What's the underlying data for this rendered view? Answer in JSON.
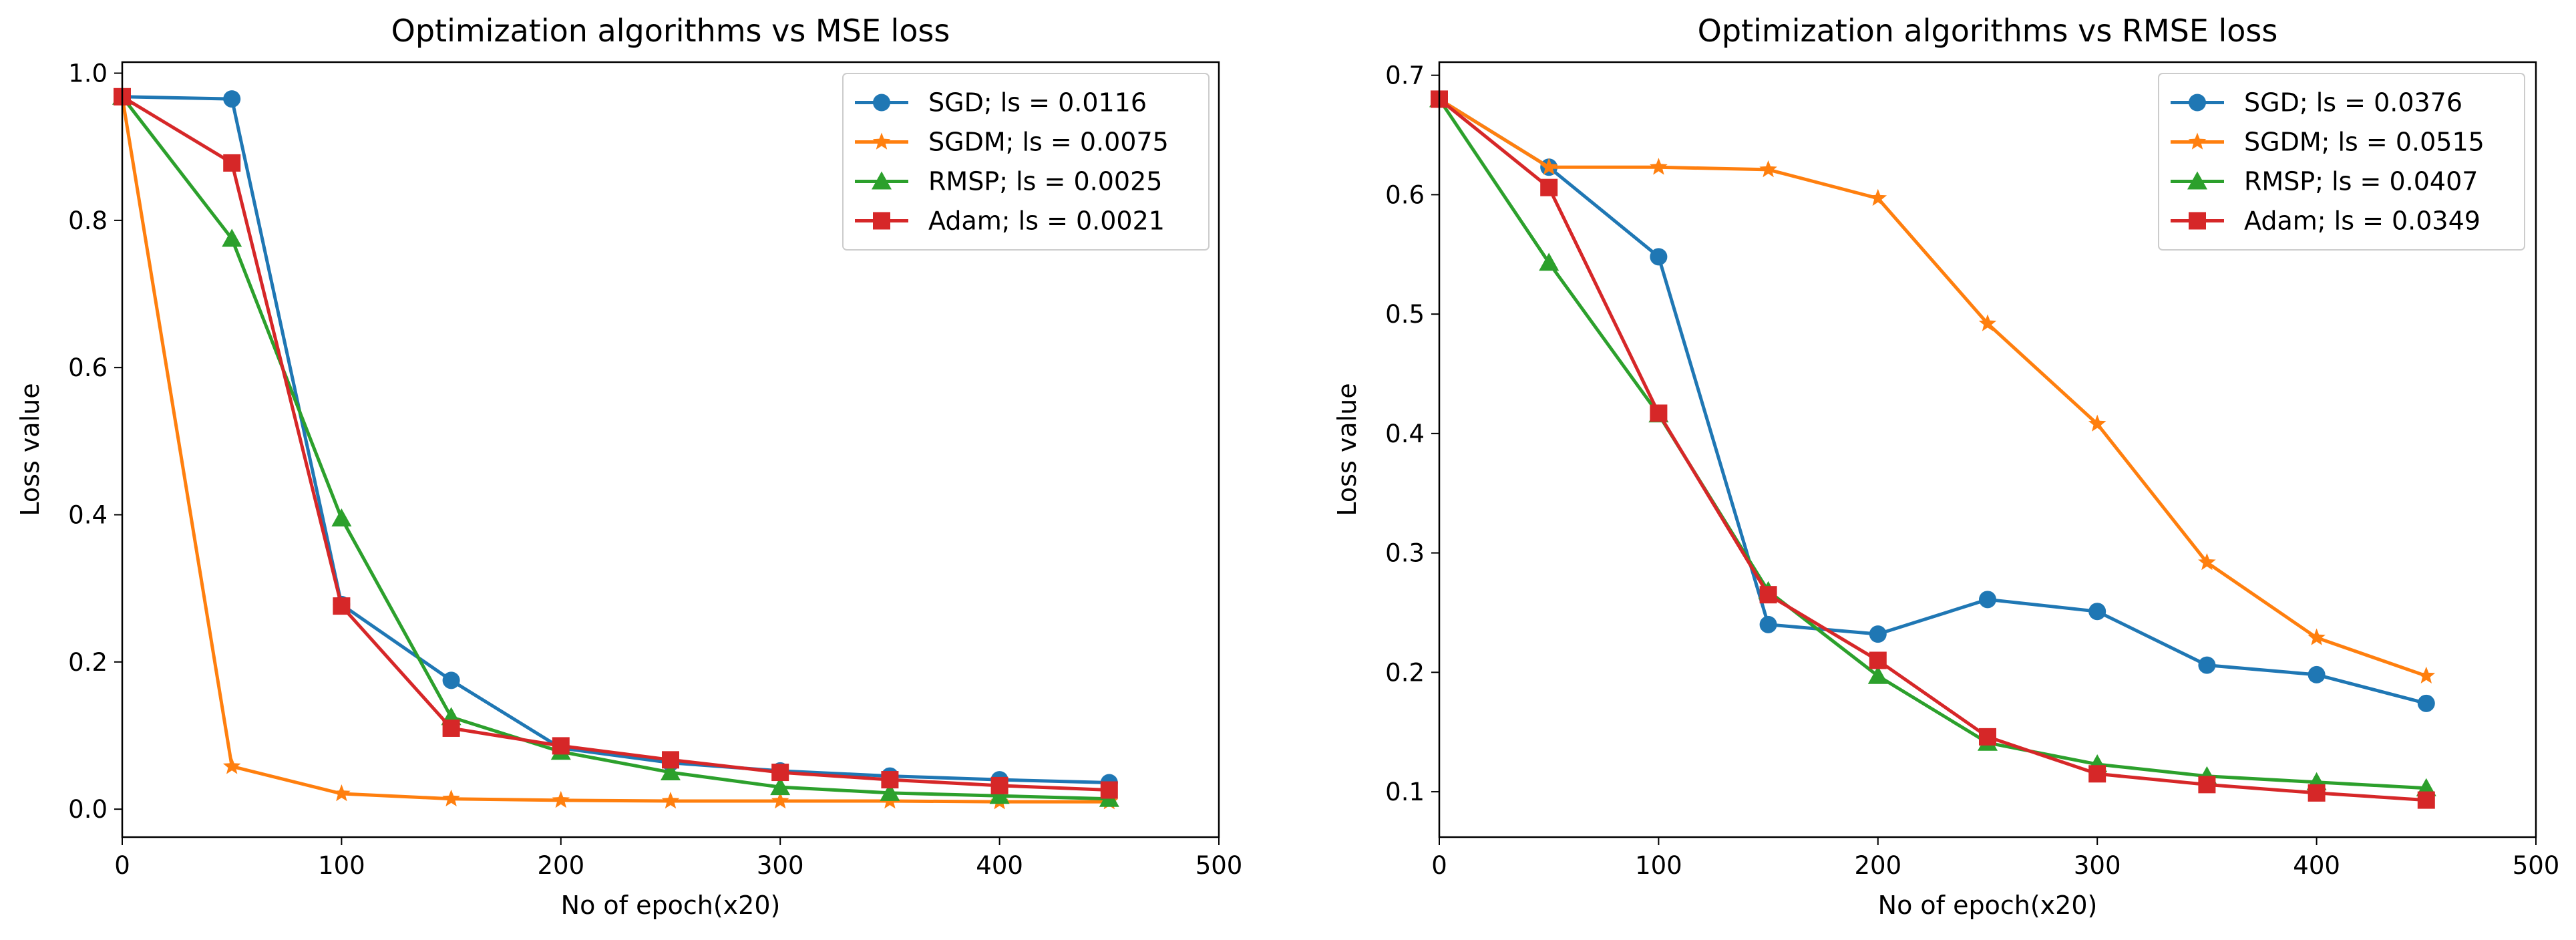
{
  "chart_data": [
    {
      "type": "line",
      "title": "Optimization algorithms vs MSE loss",
      "xlabel": "No of epoch(x20)",
      "ylabel": "Loss value",
      "xlim": [
        0,
        500
      ],
      "ylim": [
        -0.038,
        1.015
      ],
      "xticks": [
        "0",
        "100",
        "200",
        "300",
        "400",
        "500"
      ],
      "xtick_values": [
        0,
        100,
        200,
        300,
        400,
        500
      ],
      "yticks": [
        "0.0",
        "0.2",
        "0.4",
        "0.6",
        "0.8",
        "1.0"
      ],
      "ytick_values": [
        0.0,
        0.2,
        0.4,
        0.6,
        0.8,
        1.0
      ],
      "grid": false,
      "legend_position": "top-right",
      "x": [
        0,
        50,
        100,
        150,
        200,
        250,
        300,
        350,
        400,
        450
      ],
      "series": [
        {
          "name": "SGD; ls = 0.0116",
          "color": "#1f77b4",
          "marker": "circle",
          "values": [
            0.968,
            0.965,
            0.278,
            0.175,
            0.083,
            0.063,
            0.052,
            0.045,
            0.04,
            0.036
          ]
        },
        {
          "name": "SGDM; ls = 0.0075",
          "color": "#ff7f0e",
          "marker": "star",
          "values": [
            0.968,
            0.058,
            0.021,
            0.014,
            0.012,
            0.011,
            0.011,
            0.011,
            0.01,
            0.01
          ]
        },
        {
          "name": "RMSP; ls = 0.0025",
          "color": "#2ca02c",
          "marker": "triangle",
          "values": [
            0.968,
            0.775,
            0.395,
            0.125,
            0.078,
            0.05,
            0.03,
            0.022,
            0.018,
            0.014
          ]
        },
        {
          "name": "Adam; ls = 0.0021",
          "color": "#d62728",
          "marker": "square",
          "values": [
            0.968,
            0.878,
            0.276,
            0.11,
            0.086,
            0.067,
            0.05,
            0.04,
            0.032,
            0.026
          ]
        }
      ]
    },
    {
      "type": "line",
      "title": "Optimization algorithms vs RMSE loss",
      "xlabel": "No of epoch(x20)",
      "ylabel": "Loss value",
      "xlim": [
        0,
        500
      ],
      "ylim": [
        0.062,
        0.711
      ],
      "xticks": [
        "0",
        "100",
        "200",
        "300",
        "400",
        "500"
      ],
      "xtick_values": [
        0,
        100,
        200,
        300,
        400,
        500
      ],
      "yticks": [
        "0.1",
        "0.2",
        "0.3",
        "0.4",
        "0.5",
        "0.6",
        "0.7"
      ],
      "ytick_values": [
        0.1,
        0.2,
        0.3,
        0.4,
        0.5,
        0.6,
        0.7
      ],
      "grid": false,
      "legend_position": "top-right",
      "x": [
        0,
        50,
        100,
        150,
        200,
        250,
        300,
        350,
        400,
        450
      ],
      "series": [
        {
          "name": "SGD; ls = 0.0376",
          "color": "#1f77b4",
          "marker": "circle",
          "values": [
            0.68,
            0.623,
            0.548,
            0.24,
            0.232,
            0.261,
            0.251,
            0.206,
            0.198,
            0.174
          ]
        },
        {
          "name": "SGDM; ls = 0.0515",
          "color": "#ff7f0e",
          "marker": "star",
          "values": [
            0.68,
            0.623,
            0.623,
            0.621,
            0.597,
            0.492,
            0.408,
            0.292,
            0.229,
            0.197
          ]
        },
        {
          "name": "RMSP; ls = 0.0407",
          "color": "#2ca02c",
          "marker": "triangle",
          "values": [
            0.68,
            0.543,
            0.416,
            0.268,
            0.197,
            0.141,
            0.123,
            0.113,
            0.108,
            0.103
          ]
        },
        {
          "name": "Adam; ls = 0.0349",
          "color": "#d62728",
          "marker": "square",
          "values": [
            0.68,
            0.606,
            0.417,
            0.265,
            0.21,
            0.146,
            0.115,
            0.106,
            0.099,
            0.093
          ]
        }
      ]
    }
  ]
}
